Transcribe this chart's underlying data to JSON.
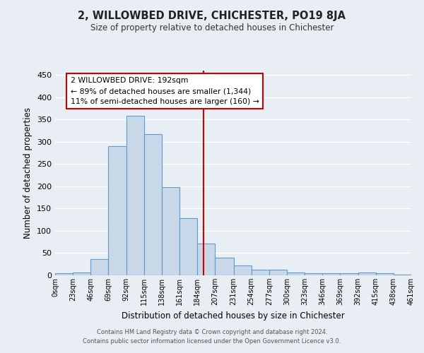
{
  "title": "2, WILLOWBED DRIVE, CHICHESTER, PO19 8JA",
  "subtitle": "Size of property relative to detached houses in Chichester",
  "xlabel": "Distribution of detached houses by size in Chichester",
  "ylabel": "Number of detached properties",
  "bar_color": "#c8d8e8",
  "bar_edge_color": "#5b9bd5",
  "background_color": "#e8eef4",
  "grid_color": "#ffffff",
  "vline_x": 192,
  "vline_color": "#cc0000",
  "bin_edges": [
    0,
    23,
    46,
    69,
    92,
    115,
    138,
    161,
    184,
    207,
    231,
    254,
    277,
    300,
    323,
    346,
    369,
    392,
    415,
    438,
    461
  ],
  "bar_heights": [
    4,
    6,
    36,
    290,
    358,
    317,
    199,
    129,
    72,
    40,
    22,
    12,
    12,
    6,
    4,
    4,
    4,
    6,
    5,
    2
  ],
  "ylim": [
    0,
    460
  ],
  "yticks": [
    0,
    50,
    100,
    150,
    200,
    250,
    300,
    350,
    400,
    450
  ],
  "annotation_title": "2 WILLOWBED DRIVE: 192sqm",
  "annotation_line1": "← 89% of detached houses are smaller (1,344)",
  "annotation_line2": "11% of semi-detached houses are larger (160) →",
  "annotation_box_color": "#ffffff",
  "annotation_box_edge_color": "#cc0000",
  "footer_line1": "Contains HM Land Registry data © Crown copyright and database right 2024.",
  "footer_line2": "Contains public sector information licensed under the Open Government Licence v3.0.",
  "tick_labels": [
    "0sqm",
    "23sqm",
    "46sqm",
    "69sqm",
    "92sqm",
    "115sqm",
    "138sqm",
    "161sqm",
    "184sqm",
    "207sqm",
    "231sqm",
    "254sqm",
    "277sqm",
    "300sqm",
    "323sqm",
    "346sqm",
    "369sqm",
    "392sqm",
    "415sqm",
    "438sqm",
    "461sqm"
  ]
}
